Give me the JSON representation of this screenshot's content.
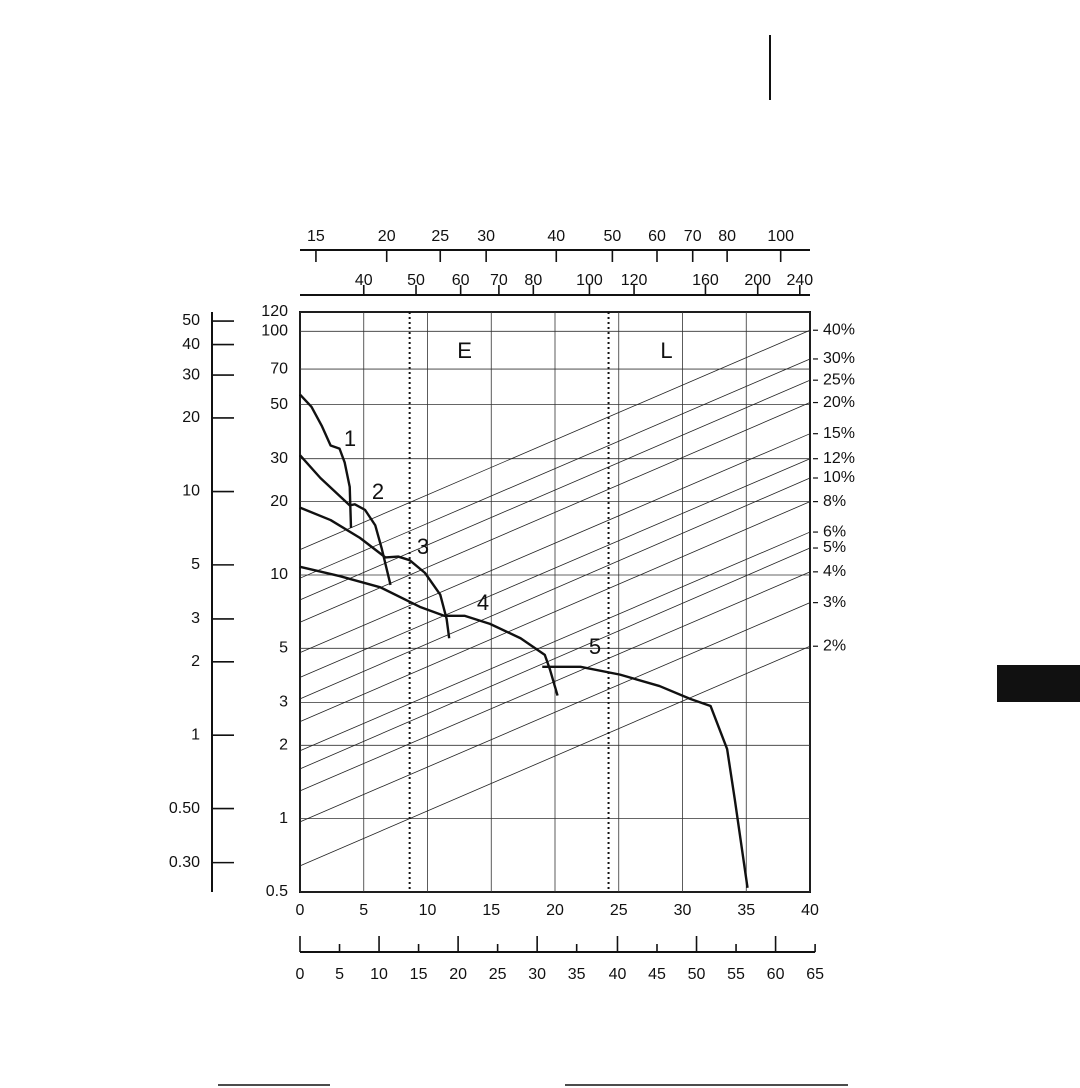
{
  "chart_data": {
    "type": "line",
    "ylog": true,
    "grid": true,
    "color": "#111111",
    "xlim": [
      0,
      40
    ],
    "xticks": [
      0,
      5,
      10,
      15,
      20,
      25,
      30,
      35,
      40
    ],
    "ylim": [
      0.5,
      120
    ],
    "yticks": [
      0.5,
      1,
      2,
      3,
      5,
      10,
      20,
      30,
      50,
      70,
      100,
      120
    ],
    "series": [
      {
        "name": "1",
        "x": [
          0,
          0.9,
          1.7,
          2.4,
          3.1,
          3.5,
          3.9,
          4.0
        ],
        "values": [
          55,
          49,
          41,
          34,
          33,
          29,
          23,
          15.6
        ]
      },
      {
        "name": "2",
        "x": [
          0,
          1.6,
          3.9,
          4.3,
          5.1,
          5.9,
          6.4,
          7.1
        ],
        "values": [
          31,
          25,
          19.3,
          19.5,
          18.5,
          16,
          12.9,
          9.1
        ]
      },
      {
        "name": "3",
        "x": [
          0,
          2.4,
          4.7,
          6.7,
          7.7,
          8.6,
          9.8,
          11,
          11.5,
          11.7
        ],
        "values": [
          18.9,
          16.8,
          14.2,
          11.8,
          11.9,
          11.5,
          10.2,
          8.3,
          6.6,
          5.5
        ]
      },
      {
        "name": "4",
        "x": [
          0,
          3.1,
          6.3,
          9.4,
          11.3,
          12.9,
          14.9,
          17.3,
          19.2,
          19.6,
          20.2
        ],
        "values": [
          10.8,
          9.9,
          8.9,
          7.4,
          6.8,
          6.8,
          6.3,
          5.5,
          4.7,
          4.1,
          3.2
        ]
      },
      {
        "name": "5",
        "x": [
          19.0,
          22.0,
          25.1,
          28.2,
          30.6,
          32.2,
          33.5,
          34.1,
          35.1
        ],
        "values": [
          4.2,
          4.2,
          3.9,
          3.5,
          3.1,
          2.9,
          1.93,
          1.2,
          0.52
        ]
      }
    ],
    "regions": [
      {
        "label": "E",
        "x": 8.6
      },
      {
        "label": "L",
        "x": 24.2
      }
    ],
    "guides": [
      {
        "label": "40%",
        "start": 12.7,
        "end": 101
      },
      {
        "label": "30%",
        "start": 9.7,
        "end": 77
      },
      {
        "label": "25%",
        "start": 7.9,
        "end": 63
      },
      {
        "label": "20%",
        "start": 6.4,
        "end": 51
      },
      {
        "label": "15%",
        "start": 4.8,
        "end": 38
      },
      {
        "label": "12%",
        "start": 3.8,
        "end": 30
      },
      {
        "label": "10%",
        "start": 3.1,
        "end": 25
      },
      {
        "label": "8%",
        "start": 2.5,
        "end": 20
      },
      {
        "label": "6%",
        "start": 1.9,
        "end": 15
      },
      {
        "label": "5%",
        "start": 1.6,
        "end": 12.9
      },
      {
        "label": "4%",
        "start": 1.3,
        "end": 10.3
      },
      {
        "label": "3%",
        "start": 0.97,
        "end": 7.7
      },
      {
        "label": "2%",
        "start": 0.64,
        "end": 5.1
      }
    ],
    "top_axis_1": {
      "ticks": [
        {
          "value": 1.25,
          "label": "15"
        },
        {
          "value": 6.8,
          "label": "20"
        },
        {
          "value": 11.0,
          "label": "25"
        },
        {
          "value": 14.6,
          "label": "30"
        },
        {
          "value": 20.1,
          "label": "40"
        },
        {
          "value": 24.5,
          "label": "50"
        },
        {
          "value": 28.0,
          "label": "60"
        },
        {
          "value": 30.8,
          "label": "70"
        },
        {
          "value": 33.5,
          "label": "80"
        },
        {
          "value": 37.7,
          "label": "100"
        }
      ]
    },
    "top_axis_2": {
      "ticks": [
        {
          "value": 5.0,
          "label": "40"
        },
        {
          "value": 9.1,
          "label": "50"
        },
        {
          "value": 12.6,
          "label": "60"
        },
        {
          "value": 15.6,
          "label": "70"
        },
        {
          "value": 18.3,
          "label": "80"
        },
        {
          "value": 22.7,
          "label": "100"
        },
        {
          "value": 26.2,
          "label": "120"
        },
        {
          "value": 31.8,
          "label": "160"
        },
        {
          "value": 35.9,
          "label": "200"
        },
        {
          "value": 39.2,
          "label": "240"
        }
      ]
    },
    "left_axis": {
      "ticks": [
        {
          "value": 110.2,
          "label": "50"
        },
        {
          "value": 88.2,
          "label": "40"
        },
        {
          "value": 66.1,
          "label": "30"
        },
        {
          "value": 44.1,
          "label": "20"
        },
        {
          "value": 22.0,
          "label": "10"
        },
        {
          "value": 11.0,
          "label": "5"
        },
        {
          "value": 6.6,
          "label": "3"
        },
        {
          "value": 4.4,
          "label": "2"
        },
        {
          "value": 2.2,
          "label": "1"
        },
        {
          "value": 1.1,
          "label": "0.50"
        },
        {
          "value": 0.66,
          "label": "0.30"
        }
      ]
    },
    "bottom_axis_2": {
      "ticks": [
        {
          "value": 0,
          "label": "0"
        },
        {
          "value": 3.1,
          "label": "5"
        },
        {
          "value": 6.2,
          "label": "10"
        },
        {
          "value": 9.3,
          "label": "15"
        },
        {
          "value": 12.4,
          "label": "20"
        },
        {
          "value": 15.5,
          "label": "25"
        },
        {
          "value": 18.6,
          "label": "30"
        },
        {
          "value": 21.7,
          "label": "35"
        },
        {
          "value": 24.9,
          "label": "40"
        },
        {
          "value": 28.0,
          "label": "45"
        },
        {
          "value": 31.1,
          "label": "50"
        },
        {
          "value": 34.2,
          "label": "55"
        },
        {
          "value": 37.3,
          "label": "60"
        },
        {
          "value": 40.4,
          "label": "65"
        }
      ]
    }
  }
}
